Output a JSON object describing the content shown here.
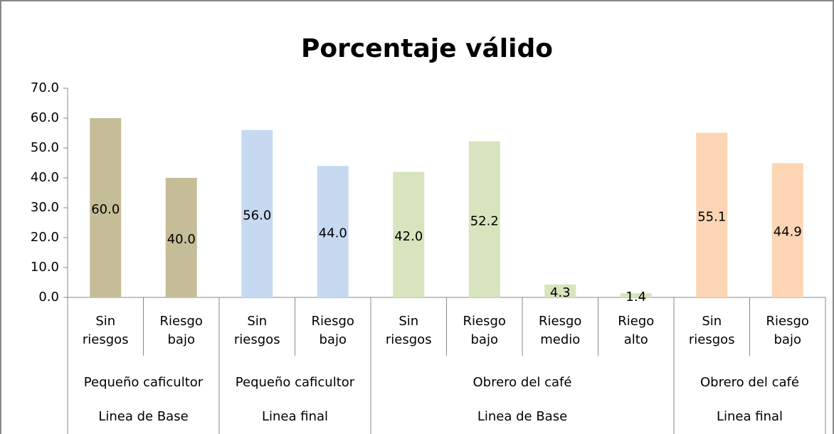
{
  "chart_data": {
    "type": "bar",
    "title": "Porcentaje válido",
    "ylim": [
      0,
      70
    ],
    "yticks": [
      {
        "value": 0,
        "label": "0.0"
      },
      {
        "value": 10,
        "label": "10.0"
      },
      {
        "value": 20,
        "label": "20.0"
      },
      {
        "value": 30,
        "label": "30.0"
      },
      {
        "value": 40,
        "label": "40.0"
      },
      {
        "value": 50,
        "label": "50.0"
      },
      {
        "value": 60,
        "label": "60.0"
      },
      {
        "value": 70,
        "label": "70.0"
      }
    ],
    "groups": [
      {
        "label": "Pequeño caficultor",
        "period": "Linea de Base",
        "color": "#c4bd97",
        "categories": [
          "Sin riesgos",
          "Riesgo bajo"
        ],
        "values": [
          60.0,
          40.0
        ],
        "value_labels": [
          "60.0",
          "40.0"
        ]
      },
      {
        "label": "Pequeño caficultor",
        "period": "Linea final",
        "color": "#c6d9f1",
        "categories": [
          "Sin riesgos",
          "Riesgo bajo"
        ],
        "values": [
          56.0,
          44.0
        ],
        "value_labels": [
          "56.0",
          "44.0"
        ]
      },
      {
        "label": "Obrero del café",
        "period": "Linea de Base",
        "color": "#d7e4bd",
        "categories": [
          "Sin riesgos",
          "Riesgo bajo",
          "Riesgo medio",
          "Riego alto"
        ],
        "values": [
          42.0,
          52.2,
          4.3,
          1.4
        ],
        "value_labels": [
          "42.0",
          "52.2",
          "4.3",
          "1.4"
        ]
      },
      {
        "label": "Obrero del café",
        "period": "Linea final",
        "color": "#fcd5b5",
        "categories": [
          "Sin riesgos",
          "Riesgo bajo"
        ],
        "values": [
          55.1,
          44.9
        ],
        "value_labels": [
          "55.1",
          "44.9"
        ]
      }
    ]
  }
}
